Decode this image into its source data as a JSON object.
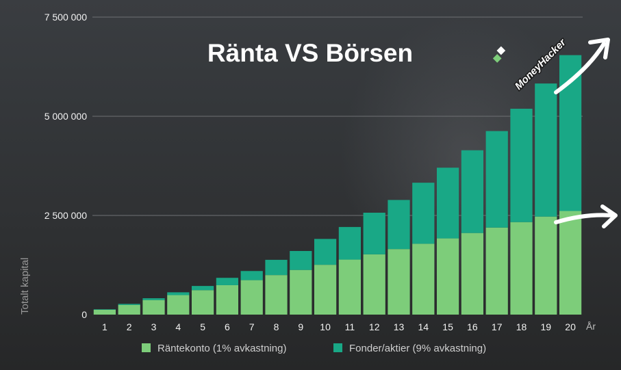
{
  "chart_data": {
    "type": "bar",
    "stacked": true,
    "title": "Ränta VS Börsen",
    "ylabel": "Totalt kapital",
    "xlabel": "År",
    "ylim": [
      0,
      7500000
    ],
    "yticks": [
      {
        "value": 0,
        "label": "0"
      },
      {
        "value": 2500000,
        "label": "2 500 000"
      },
      {
        "value": 5000000,
        "label": "5 000 000"
      },
      {
        "value": 7500000,
        "label": "7 500 000"
      }
    ],
    "grid": true,
    "legend_position": "bottom",
    "categories": [
      "1",
      "2",
      "3",
      "4",
      "5",
      "6",
      "7",
      "8",
      "9",
      "10",
      "11",
      "12",
      "13",
      "14",
      "15",
      "16",
      "17",
      "18",
      "19",
      "20"
    ],
    "series": [
      {
        "name": "Räntekonto (1% avkastning)",
        "color": "#7dcd7a",
        "values": [
          121000,
          243000,
          367000,
          491000,
          616000,
          742000,
          869000,
          997000,
          1126000,
          1256000,
          1387000,
          1519000,
          1652000,
          1786000,
          1921000,
          2057000,
          2194000,
          2332000,
          2471000,
          2612000
        ]
      },
      {
        "name": "Fonder/aktier (9% avkastning)",
        "color": "#19a886",
        "values": [
          12000,
          27000,
          45000,
          71000,
          106000,
          185000,
          230000,
          384000,
          478000,
          652000,
          822000,
          1050000,
          1238000,
          1539000,
          1783000,
          2086000,
          2433000,
          2858000,
          3355000,
          3929000
        ]
      }
    ]
  },
  "brand": {
    "label": "MoneyHacker",
    "color": "#7dcd7a"
  },
  "colors": {
    "gridline": "#6f7174",
    "arrow": "#ffffff"
  }
}
